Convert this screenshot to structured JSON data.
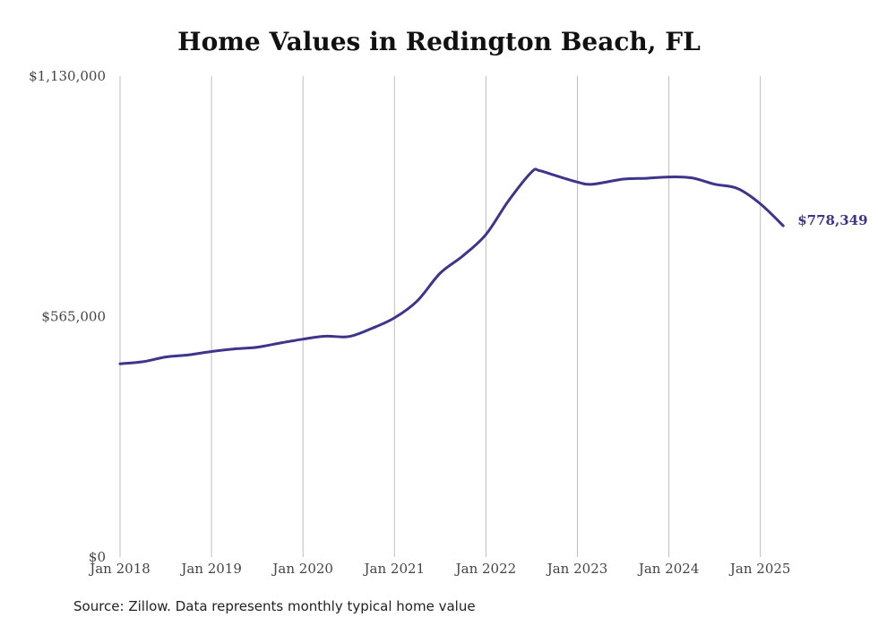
{
  "chart_data": {
    "type": "line",
    "title": "Home Values in Redington Beach, FL",
    "xlabel": "",
    "ylabel": "",
    "ylim": [
      0,
      1130000
    ],
    "y_ticks": [
      "$0",
      "$565,000",
      "$1,130,000"
    ],
    "y_tick_values": [
      0,
      565000,
      1130000
    ],
    "x_ticks": [
      "Jan 2018",
      "Jan 2019",
      "Jan 2020",
      "Jan 2021",
      "Jan 2022",
      "Jan 2023",
      "Jan 2024",
      "Jan 2025"
    ],
    "x_tick_values": [
      "2018-01",
      "2019-01",
      "2020-01",
      "2021-01",
      "2022-01",
      "2023-01",
      "2024-01",
      "2025-01"
    ],
    "x_range": [
      "2018-01",
      "2025-04"
    ],
    "grid": "vertical",
    "line_color": "#3d348b",
    "series": [
      {
        "x": [
          "2018-01",
          "2018-04",
          "2018-07",
          "2018-10",
          "2019-01",
          "2019-04",
          "2019-07",
          "2019-10",
          "2020-01",
          "2020-04",
          "2020-07",
          "2020-10",
          "2021-01",
          "2021-04",
          "2021-07",
          "2021-10",
          "2022-01",
          "2022-04",
          "2022-07",
          "2022-08",
          "2022-10",
          "2023-01",
          "2023-03",
          "2023-07",
          "2023-10",
          "2024-01",
          "2024-04",
          "2024-07",
          "2024-10",
          "2025-01",
          "2025-04"
        ],
        "values": [
          454000,
          459000,
          470000,
          475000,
          483000,
          489000,
          493000,
          503000,
          512000,
          519000,
          518000,
          537000,
          562000,
          602000,
          667000,
          708000,
          758000,
          838000,
          905000,
          908000,
          897000,
          881000,
          876000,
          888000,
          890000,
          893000,
          891000,
          876000,
          866000,
          830000,
          778349
        ]
      }
    ],
    "end_label": "$778,349"
  },
  "source": "Source: Zillow. Data represents monthly typical home value"
}
